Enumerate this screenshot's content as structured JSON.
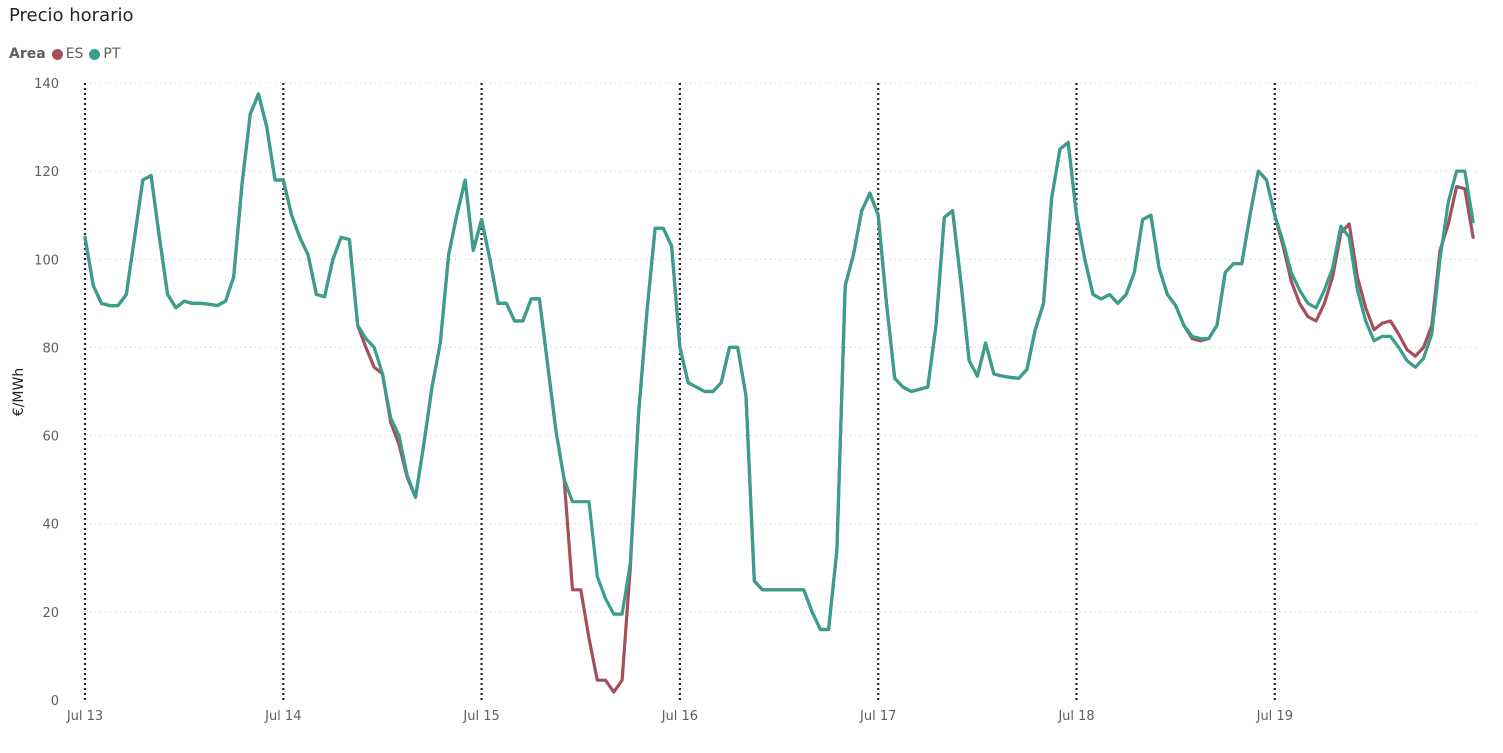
{
  "chart_data": {
    "type": "line",
    "title": "Precio horario",
    "legend_title": "Area",
    "legend_position": "top-left",
    "ylabel": "€/MWh",
    "xlabel": "",
    "ylim": [
      0,
      140
    ],
    "yticks": [
      0,
      20,
      40,
      60,
      80,
      100,
      120,
      140
    ],
    "grid": true,
    "x_tick_labels": [
      "Jul 13",
      "Jul 14",
      "Jul 15",
      "Jul 16",
      "Jul 17",
      "Jul 18",
      "Jul 19"
    ],
    "x_start_label": "Jul 13",
    "hours_per_day": 24,
    "series": [
      {
        "name": "ES",
        "color": "#a4505c",
        "values": [
          105,
          94,
          90,
          89.5,
          89.5,
          92,
          105,
          118,
          119,
          105,
          92,
          89,
          90.5,
          90,
          90,
          89.8,
          89.5,
          90.5,
          96,
          117,
          133,
          137.5,
          130,
          118,
          118,
          110,
          105,
          101,
          92,
          91.5,
          100,
          105,
          104.5,
          85,
          80,
          75.5,
          74,
          63,
          58,
          50.5,
          46,
          58,
          71,
          81,
          101,
          110,
          118,
          102,
          109,
          100,
          90,
          90,
          86,
          86,
          91,
          91,
          76,
          61,
          50,
          25,
          25,
          14,
          4.5,
          4.5,
          1.8,
          4.5,
          30,
          65,
          88,
          107,
          107,
          103,
          80,
          72,
          71,
          70,
          70,
          72,
          80,
          80,
          69,
          27,
          25,
          25,
          25,
          25,
          25,
          25,
          20,
          16,
          16,
          34,
          94,
          101,
          111,
          115,
          110,
          90,
          73,
          71,
          70,
          70.5,
          71,
          85,
          109.5,
          111,
          95,
          77,
          73.5,
          81,
          74,
          73.5,
          73.2,
          73,
          75,
          84,
          90,
          114,
          125,
          126.5,
          110,
          100,
          92,
          91,
          92,
          90,
          92,
          97,
          109,
          110,
          98,
          92,
          89.5,
          85,
          82,
          81.5,
          82,
          85,
          97,
          99,
          99,
          110,
          120,
          118,
          110,
          103,
          95,
          90,
          87,
          86,
          90,
          96,
          106,
          108,
          96,
          89,
          84,
          85.5,
          86,
          83,
          79.5,
          78,
          80,
          85,
          102,
          108,
          116.5,
          116,
          105
        ]
      },
      {
        "name": "PT",
        "color": "#3a9e8d",
        "values": [
          105,
          94,
          90,
          89.5,
          89.5,
          92,
          105,
          118,
          119,
          105,
          92,
          89,
          90.5,
          90,
          90,
          89.8,
          89.5,
          90.5,
          96,
          117,
          133,
          137.5,
          130,
          118,
          118,
          110,
          105,
          101,
          92,
          91.5,
          100,
          105,
          104.5,
          85,
          82,
          80,
          74,
          64,
          60,
          51,
          46,
          58,
          71,
          81,
          101,
          110,
          118,
          102,
          109,
          100,
          90,
          90,
          86,
          86,
          91,
          91,
          76,
          61,
          50,
          45,
          45,
          45,
          28,
          23,
          19.5,
          19.5,
          31,
          65,
          88,
          107,
          107,
          103,
          80,
          72,
          71,
          70,
          70,
          72,
          80,
          80,
          69,
          27,
          25,
          25,
          25,
          25,
          25,
          25,
          20,
          16,
          16,
          34,
          94,
          101,
          111,
          115,
          110,
          90,
          73,
          71,
          70,
          70.5,
          71,
          85,
          109.5,
          111,
          95,
          77,
          73.5,
          81,
          74,
          73.5,
          73.2,
          73,
          75,
          84,
          90,
          114,
          125,
          126.5,
          110,
          100,
          92,
          91,
          92,
          90,
          92,
          97,
          109,
          110,
          98,
          92,
          89.5,
          85,
          82.5,
          82,
          82,
          85,
          97,
          99,
          99,
          110,
          120,
          118,
          110,
          104,
          97,
          93,
          90,
          89,
          93,
          98,
          107.5,
          105,
          93,
          86,
          81.5,
          82.5,
          82.5,
          80,
          77,
          75.5,
          77.5,
          83,
          100,
          113,
          120,
          120,
          108.5
        ]
      }
    ]
  }
}
